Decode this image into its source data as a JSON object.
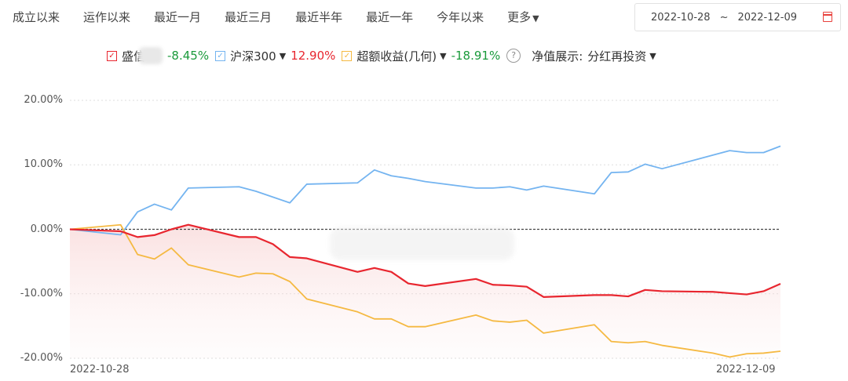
{
  "tabs": [
    "成立以来",
    "运作以来",
    "最近一月",
    "最近三月",
    "最近半年",
    "最近一年",
    "今年以来"
  ],
  "more_label": "更多",
  "date_range": {
    "start": "2022-10-28",
    "separator": "~",
    "end": "2022-12-09",
    "icon": "calendar-icon"
  },
  "legend": {
    "fund": {
      "name": "盛信",
      "value": "-8.45%",
      "color": "#e8262f"
    },
    "benchmark": {
      "name": "沪深300",
      "value": "12.90%",
      "color": "#74b4f0"
    },
    "excess": {
      "name": "超额收益(几何)",
      "value": "-18.91%",
      "color": "#f5b942"
    },
    "help_icon": "question-circle-icon",
    "nav_display_label": "净值展示:",
    "nav_display_value": "分红再投资"
  },
  "chart_data": {
    "type": "line",
    "x": [
      "2022-10-28",
      "2022-10-31",
      "2022-11-01",
      "2022-11-02",
      "2022-11-03",
      "2022-11-04",
      "2022-11-07",
      "2022-11-08",
      "2022-11-09",
      "2022-11-10",
      "2022-11-11",
      "2022-11-14",
      "2022-11-15",
      "2022-11-16",
      "2022-11-17",
      "2022-11-18",
      "2022-11-21",
      "2022-11-22",
      "2022-11-23",
      "2022-11-24",
      "2022-11-25",
      "2022-11-28",
      "2022-11-29",
      "2022-11-30",
      "2022-12-01",
      "2022-12-02",
      "2022-12-05",
      "2022-12-06",
      "2022-12-07",
      "2022-12-08",
      "2022-12-09"
    ],
    "series": [
      {
        "name": "沪深300",
        "color": "#74b4f0",
        "values": [
          0,
          -0.85,
          2.7,
          3.9,
          3.0,
          6.4,
          6.6,
          5.9,
          5.0,
          4.1,
          7.0,
          7.2,
          9.2,
          8.3,
          7.9,
          7.4,
          6.4,
          6.4,
          6.6,
          6.1,
          6.7,
          5.5,
          8.8,
          8.9,
          10.1,
          9.4,
          11.5,
          12.2,
          11.9,
          11.9,
          12.9
        ]
      },
      {
        "name": "超额收益(几何)",
        "color": "#f5b942",
        "values": [
          0,
          0.7,
          -3.9,
          -4.6,
          -2.9,
          -5.5,
          -7.4,
          -6.8,
          -6.9,
          -8.1,
          -10.8,
          -12.8,
          -13.9,
          -13.9,
          -15.1,
          -15.1,
          -13.3,
          -14.2,
          -14.4,
          -14.1,
          -16.1,
          -14.8,
          -17.4,
          -17.6,
          -17.4,
          -18.0,
          -19.2,
          -19.8,
          -19.3,
          -19.2,
          -18.91
        ]
      },
      {
        "name": "盛信",
        "color": "#e8262f",
        "area": true,
        "values": [
          0,
          -0.3,
          -1.2,
          -0.9,
          0,
          0.7,
          -1.2,
          -1.2,
          -2.3,
          -4.3,
          -4.5,
          -6.6,
          -6.0,
          -6.6,
          -8.4,
          -8.8,
          -7.7,
          -8.6,
          -8.7,
          -8.9,
          -10.5,
          -10.2,
          -10.2,
          -10.4,
          -9.4,
          -9.6,
          -9.7,
          -9.9,
          -10.1,
          -9.6,
          -8.45
        ]
      }
    ],
    "ylim": [
      -20,
      20
    ],
    "yticks": [
      "20.00%",
      "10.00%",
      "0.00%",
      "-10.00%",
      "-20.00%"
    ],
    "xticks": [
      "2022-10-28",
      "2022-12-09"
    ],
    "grid": true,
    "legend_position": "top"
  }
}
